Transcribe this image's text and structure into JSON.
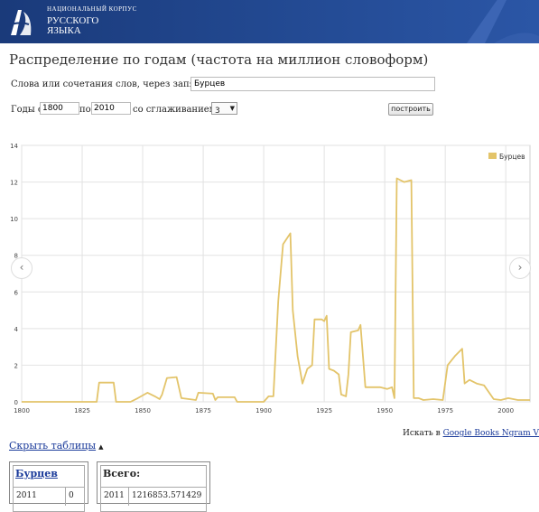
{
  "header": {
    "line1": "НАЦИОНАЛЬНЫЙ КОРПУС",
    "line2": "РУССКОГО",
    "line3": "ЯЗЫКА"
  },
  "title": "Распределение по годам (частота на миллион словоформ)",
  "form": {
    "words_label": "Слова или сочетания слов, через запятую:",
    "words_value": "Бурцев",
    "years_from_label": "Годы с",
    "year_from": "1800",
    "to_label": "по",
    "year_to": "2010",
    "smoothing_label": "со сглаживанием",
    "smoothing_value": "3",
    "build_button": "построить"
  },
  "chart_data": {
    "type": "line",
    "xlim": [
      1800,
      2010
    ],
    "ylim": [
      0,
      14
    ],
    "x_ticks": [
      "1800",
      "1825",
      "1850",
      "1875",
      "1900",
      "1925",
      "1950",
      "1975",
      "2000"
    ],
    "y_ticks": [
      "0",
      "2",
      "4",
      "6",
      "8",
      "10",
      "12",
      "14"
    ],
    "grid": true,
    "legend_position": "top-right",
    "series": [
      {
        "name": "Бурцев",
        "color": "#e3c46a",
        "points": [
          [
            1800,
            0
          ],
          [
            1831,
            0
          ],
          [
            1832,
            1.05
          ],
          [
            1838,
            1.05
          ],
          [
            1839,
            0
          ],
          [
            1845,
            0
          ],
          [
            1848,
            0.2
          ],
          [
            1852,
            0.5
          ],
          [
            1855,
            0.3
          ],
          [
            1857,
            0.15
          ],
          [
            1858,
            0.4
          ],
          [
            1860,
            1.3
          ],
          [
            1864,
            1.35
          ],
          [
            1866,
            0.2
          ],
          [
            1872,
            0.1
          ],
          [
            1873,
            0.5
          ],
          [
            1879,
            0.45
          ],
          [
            1880,
            0.1
          ],
          [
            1881,
            0.25
          ],
          [
            1888,
            0.25
          ],
          [
            1889,
            0
          ],
          [
            1900,
            0
          ],
          [
            1902,
            0.3
          ],
          [
            1904,
            0.3
          ],
          [
            1906,
            5.5
          ],
          [
            1908,
            8.6
          ],
          [
            1910,
            9.0
          ],
          [
            1911,
            9.2
          ],
          [
            1912,
            5.0
          ],
          [
            1914,
            2.5
          ],
          [
            1916,
            1.0
          ],
          [
            1918,
            1.8
          ],
          [
            1920,
            2.0
          ],
          [
            1921,
            4.5
          ],
          [
            1924,
            4.5
          ],
          [
            1925,
            4.4
          ],
          [
            1926,
            4.7
          ],
          [
            1927,
            1.8
          ],
          [
            1929,
            1.7
          ],
          [
            1931,
            1.5
          ],
          [
            1932,
            0.4
          ],
          [
            1934,
            0.3
          ],
          [
            1935,
            1.5
          ],
          [
            1936,
            3.8
          ],
          [
            1939,
            3.9
          ],
          [
            1940,
            4.2
          ],
          [
            1942,
            0.8
          ],
          [
            1944,
            0.8
          ],
          [
            1946,
            0.8
          ],
          [
            1948,
            0.8
          ],
          [
            1951,
            0.7
          ],
          [
            1953,
            0.8
          ],
          [
            1954,
            0.2
          ],
          [
            1955,
            12.2
          ],
          [
            1958,
            12.0
          ],
          [
            1961,
            12.1
          ],
          [
            1962,
            0.2
          ],
          [
            1964,
            0.2
          ],
          [
            1966,
            0.1
          ],
          [
            1970,
            0.15
          ],
          [
            1974,
            0.1
          ],
          [
            1976,
            2.0
          ],
          [
            1979,
            2.5
          ],
          [
            1982,
            2.9
          ],
          [
            1983,
            1.0
          ],
          [
            1985,
            1.2
          ],
          [
            1988,
            1.0
          ],
          [
            1991,
            0.9
          ],
          [
            1995,
            0.15
          ],
          [
            1998,
            0.1
          ],
          [
            2001,
            0.2
          ],
          [
            2005,
            0.1
          ],
          [
            2010,
            0.1
          ]
        ]
      }
    ]
  },
  "ngram": {
    "prefix": "Искать в",
    "link": "Google Books Ngram Viewer"
  },
  "tables": {
    "hide_label": "Скрыть таблицы",
    "t1_head": "Бурцев",
    "t1_year": "2011",
    "t1_value": "0",
    "t2_head": "Всего:",
    "t2_year": "2011",
    "t2_value": "1216853.571429"
  }
}
